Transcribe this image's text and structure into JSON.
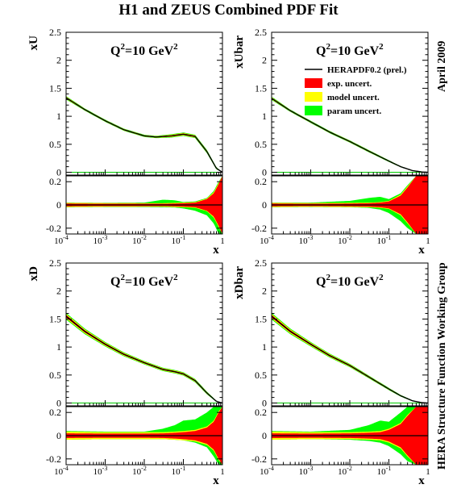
{
  "figure": {
    "title": "H1 and ZEUS Combined PDF Fit",
    "side_date": "April 2009",
    "side_group": "HERA Structure Function Working Group",
    "q2_label": "Q",
    "q2_sup": "2",
    "q2_value": "=10 GeV",
    "q2_unit_sup": "2"
  },
  "legend": {
    "placement": "top-right panel, upper area",
    "entries": [
      {
        "label": "HERAPDF0.2 (prel.)",
        "kind": "line",
        "color": "#000000"
      },
      {
        "label": "exp. uncert.",
        "kind": "box",
        "color": "#ff0000"
      },
      {
        "label": "model uncert.",
        "kind": "box",
        "color": "#ffff00"
      },
      {
        "label": "param uncert.",
        "kind": "box",
        "color": "#00ff00"
      }
    ]
  },
  "colors": {
    "exp": "#ff0000",
    "model": "#ffff00",
    "param": "#00ff00",
    "central": "#000000",
    "zero_line": "#00cc00"
  },
  "chart_data": [
    {
      "type": "line",
      "ylabel": "xU",
      "xlabel": "x",
      "xscale": "log",
      "xlim": [
        0.0001,
        1
      ],
      "ylim": [
        -0.05,
        2.5
      ],
      "yticks": [
        "0",
        "0.5",
        "1",
        "1.5",
        "2",
        "2.5"
      ],
      "xticks": [
        "10^-4",
        "10^-3",
        "10^-2",
        "10^-1",
        "1"
      ],
      "x": [
        0.0001,
        0.0003,
        0.001,
        0.003,
        0.01,
        0.02,
        0.05,
        0.1,
        0.2,
        0.4,
        0.7,
        1.0
      ],
      "central": [
        1.33,
        1.12,
        0.92,
        0.76,
        0.65,
        0.63,
        0.65,
        0.68,
        0.64,
        0.37,
        0.07,
        0.0
      ],
      "band": [
        0.03,
        0.02,
        0.02,
        0.02,
        0.02,
        0.02,
        0.03,
        0.03,
        0.03,
        0.03,
        0.02,
        0.0
      ],
      "ratio": {
        "ylim": [
          -0.25,
          0.25
        ],
        "yticks": [
          "-0.2",
          "0",
          "0.2"
        ],
        "x": [
          0.0001,
          0.001,
          0.01,
          0.03,
          0.06,
          0.1,
          0.2,
          0.4,
          0.6,
          0.8,
          1.0
        ],
        "exp": [
          0.012,
          0.01,
          0.01,
          0.01,
          0.012,
          0.015,
          0.02,
          0.05,
          0.1,
          0.18,
          0.25
        ],
        "model": [
          0.018,
          0.016,
          0.015,
          0.015,
          0.018,
          0.02,
          0.025,
          0.055,
          0.11,
          0.19,
          0.25
        ],
        "param_up": [
          0.02,
          0.018,
          0.02,
          0.045,
          0.04,
          0.025,
          0.03,
          0.06,
          0.12,
          0.2,
          0.25
        ],
        "param_dn": [
          -0.02,
          -0.018,
          -0.018,
          -0.02,
          -0.022,
          -0.03,
          -0.05,
          -0.09,
          -0.16,
          -0.25,
          -0.25
        ]
      }
    },
    {
      "type": "line",
      "ylabel": "xUbar",
      "xlabel": "x",
      "xscale": "log",
      "xlim": [
        0.0001,
        1
      ],
      "ylim": [
        -0.05,
        2.5
      ],
      "yticks": [
        "0",
        "0.5",
        "1",
        "1.5",
        "2",
        "2.5"
      ],
      "xticks": [
        "10^-4",
        "10^-3",
        "10^-2",
        "10^-1",
        "1"
      ],
      "x": [
        0.0001,
        0.0003,
        0.001,
        0.003,
        0.01,
        0.03,
        0.1,
        0.2,
        0.4,
        0.7,
        1.0
      ],
      "central": [
        1.32,
        1.1,
        0.9,
        0.72,
        0.55,
        0.38,
        0.2,
        0.1,
        0.03,
        0.005,
        0.0
      ],
      "band": [
        0.03,
        0.02,
        0.02,
        0.02,
        0.02,
        0.02,
        0.015,
        0.01,
        0.006,
        0.003,
        0.0
      ],
      "ratio": {
        "ylim": [
          -0.25,
          0.25
        ],
        "yticks": [
          "-0.2",
          "0",
          "0.2"
        ],
        "x": [
          0.0001,
          0.001,
          0.01,
          0.03,
          0.06,
          0.1,
          0.2,
          0.3,
          0.5,
          0.7,
          1.0
        ],
        "exp": [
          0.012,
          0.01,
          0.012,
          0.015,
          0.02,
          0.03,
          0.08,
          0.15,
          0.25,
          0.25,
          0.25
        ],
        "model": [
          0.018,
          0.016,
          0.018,
          0.02,
          0.025,
          0.035,
          0.09,
          0.16,
          0.25,
          0.25,
          0.25
        ],
        "param_up": [
          0.02,
          0.02,
          0.035,
          0.06,
          0.07,
          0.05,
          0.1,
          0.17,
          0.25,
          0.25,
          0.25
        ],
        "param_dn": [
          -0.02,
          -0.018,
          -0.02,
          -0.025,
          -0.04,
          -0.07,
          -0.14,
          -0.2,
          -0.25,
          -0.25,
          -0.25
        ]
      }
    },
    {
      "type": "line",
      "ylabel": "xD",
      "xlabel": "x",
      "xscale": "log",
      "xlim": [
        0.0001,
        1
      ],
      "ylim": [
        -0.05,
        2.5
      ],
      "yticks": [
        "0",
        "0.5",
        "1",
        "1.5",
        "2",
        "2.5"
      ],
      "xticks": [
        "10^-4",
        "10^-3",
        "10^-2",
        "10^-1",
        "1"
      ],
      "x": [
        0.0001,
        0.0003,
        0.001,
        0.003,
        0.01,
        0.03,
        0.06,
        0.1,
        0.2,
        0.4,
        0.7,
        1.0
      ],
      "central": [
        1.55,
        1.28,
        1.05,
        0.87,
        0.72,
        0.6,
        0.56,
        0.52,
        0.4,
        0.18,
        0.03,
        0.0
      ],
      "band": [
        0.06,
        0.05,
        0.04,
        0.035,
        0.03,
        0.03,
        0.03,
        0.03,
        0.03,
        0.025,
        0.01,
        0.0
      ],
      "ratio": {
        "ylim": [
          -0.25,
          0.25
        ],
        "yticks": [
          "-0.2",
          "0",
          "0.2"
        ],
        "x": [
          0.0001,
          0.001,
          0.01,
          0.03,
          0.06,
          0.1,
          0.2,
          0.4,
          0.6,
          0.8,
          1.0
        ],
        "exp": [
          0.02,
          0.018,
          0.018,
          0.02,
          0.025,
          0.03,
          0.04,
          0.07,
          0.12,
          0.2,
          0.25
        ],
        "model": [
          0.035,
          0.03,
          0.03,
          0.03,
          0.035,
          0.04,
          0.05,
          0.08,
          0.13,
          0.21,
          0.25
        ],
        "param_up": [
          0.04,
          0.035,
          0.035,
          0.06,
          0.09,
          0.13,
          0.14,
          0.2,
          0.25,
          0.25,
          0.25
        ],
        "param_dn": [
          -0.035,
          -0.03,
          -0.03,
          -0.03,
          -0.035,
          -0.04,
          -0.06,
          -0.1,
          -0.18,
          -0.25,
          -0.25
        ]
      }
    },
    {
      "type": "line",
      "ylabel": "xDbar",
      "xlabel": "x",
      "xscale": "log",
      "xlim": [
        0.0001,
        1
      ],
      "ylim": [
        -0.05,
        2.5
      ],
      "yticks": [
        "0",
        "0.5",
        "1",
        "1.5",
        "2",
        "2.5"
      ],
      "xticks": [
        "10^-4",
        "10^-3",
        "10^-2",
        "10^-1",
        "1"
      ],
      "x": [
        0.0001,
        0.0003,
        0.001,
        0.003,
        0.01,
        0.03,
        0.1,
        0.2,
        0.4,
        0.7,
        1.0
      ],
      "central": [
        1.55,
        1.28,
        1.05,
        0.85,
        0.67,
        0.47,
        0.25,
        0.13,
        0.04,
        0.006,
        0.0
      ],
      "band": [
        0.06,
        0.05,
        0.04,
        0.035,
        0.03,
        0.025,
        0.02,
        0.015,
        0.008,
        0.003,
        0.0
      ],
      "ratio": {
        "ylim": [
          -0.25,
          0.25
        ],
        "yticks": [
          "-0.2",
          "0",
          "0.2"
        ],
        "x": [
          0.0001,
          0.001,
          0.01,
          0.03,
          0.06,
          0.1,
          0.2,
          0.3,
          0.5,
          0.7,
          1.0
        ],
        "exp": [
          0.02,
          0.018,
          0.02,
          0.025,
          0.03,
          0.05,
          0.1,
          0.17,
          0.25,
          0.25,
          0.25
        ],
        "model": [
          0.035,
          0.03,
          0.03,
          0.035,
          0.04,
          0.06,
          0.11,
          0.18,
          0.25,
          0.25,
          0.25
        ],
        "param_up": [
          0.04,
          0.035,
          0.05,
          0.09,
          0.13,
          0.12,
          0.2,
          0.25,
          0.25,
          0.25,
          0.25
        ],
        "param_dn": [
          -0.035,
          -0.03,
          -0.035,
          -0.045,
          -0.06,
          -0.09,
          -0.16,
          -0.22,
          -0.25,
          -0.25,
          -0.25
        ]
      }
    }
  ]
}
